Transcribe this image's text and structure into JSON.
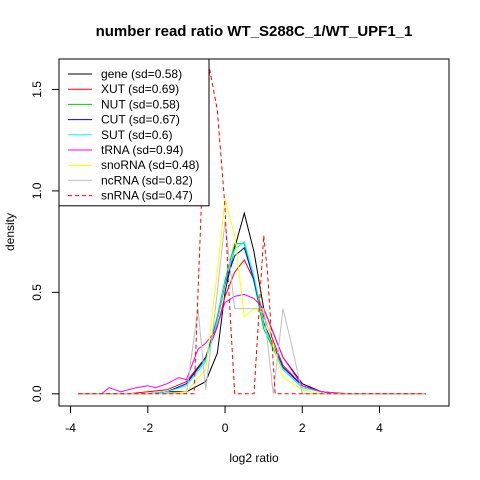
{
  "chart_data": {
    "type": "line",
    "title": "number read ratio WT_S288C_1/WT_UPF1_1",
    "xlabel": "log2 ratio",
    "ylabel": "density",
    "xlim": [
      -4.3,
      5.8
    ],
    "ylim": [
      -0.06,
      1.65
    ],
    "xticks": [
      -4,
      -2,
      0,
      2,
      4
    ],
    "yticks": [
      0.0,
      0.5,
      1.0,
      1.5
    ],
    "xtick_labels": [
      "-4",
      "-2",
      "0",
      "2",
      "4"
    ],
    "ytick_labels": [
      "0.0",
      "0.5",
      "1.0",
      "1.5"
    ],
    "legend_position": "top-left",
    "series": [
      {
        "name": "gene (sd=0.58)",
        "color": "#000000",
        "dashed": false,
        "points": [
          [
            -3.8,
            0
          ],
          [
            -3,
            0
          ],
          [
            -2,
            0
          ],
          [
            -1.5,
            0.01
          ],
          [
            -1,
            0.01
          ],
          [
            -0.5,
            0.06
          ],
          [
            -0.2,
            0.2
          ],
          [
            0,
            0.5
          ],
          [
            0.25,
            0.72
          ],
          [
            0.5,
            0.89
          ],
          [
            0.75,
            0.7
          ],
          [
            1,
            0.42
          ],
          [
            1.5,
            0.18
          ],
          [
            2,
            0.05
          ],
          [
            2.5,
            0.01
          ],
          [
            3,
            0
          ],
          [
            5.2,
            0
          ]
        ]
      },
      {
        "name": "XUT (sd=0.69)",
        "color": "#ff0000",
        "dashed": false,
        "points": [
          [
            -3.8,
            0
          ],
          [
            -2.5,
            0
          ],
          [
            -2,
            0.01
          ],
          [
            -1.5,
            0.02
          ],
          [
            -1,
            0.06
          ],
          [
            -0.5,
            0.18
          ],
          [
            -0.2,
            0.33
          ],
          [
            0,
            0.48
          ],
          [
            0.25,
            0.6
          ],
          [
            0.5,
            0.66
          ],
          [
            0.75,
            0.56
          ],
          [
            1,
            0.38
          ],
          [
            1.5,
            0.14
          ],
          [
            2,
            0.04
          ],
          [
            2.5,
            0.01
          ],
          [
            3.2,
            0
          ],
          [
            5.2,
            0
          ]
        ]
      },
      {
        "name": "NUT (sd=0.58)",
        "color": "#00cc00",
        "dashed": false,
        "points": [
          [
            -3.8,
            0
          ],
          [
            -2,
            0
          ],
          [
            -1.5,
            0.01
          ],
          [
            -1,
            0.05
          ],
          [
            -0.5,
            0.17
          ],
          [
            -0.2,
            0.38
          ],
          [
            0,
            0.56
          ],
          [
            0.25,
            0.74
          ],
          [
            0.5,
            0.74
          ],
          [
            0.75,
            0.55
          ],
          [
            1,
            0.32
          ],
          [
            1.5,
            0.12
          ],
          [
            2,
            0.03
          ],
          [
            2.5,
            0.01
          ],
          [
            3,
            0
          ],
          [
            5.2,
            0
          ]
        ]
      },
      {
        "name": "CUT (sd=0.67)",
        "color": "#0000ff",
        "dashed": false,
        "points": [
          [
            -3.8,
            0
          ],
          [
            -2,
            0
          ],
          [
            -1.5,
            0.01
          ],
          [
            -1,
            0.05
          ],
          [
            -0.5,
            0.18
          ],
          [
            -0.2,
            0.36
          ],
          [
            0,
            0.54
          ],
          [
            0.25,
            0.68
          ],
          [
            0.5,
            0.72
          ],
          [
            0.75,
            0.56
          ],
          [
            1,
            0.35
          ],
          [
            1.5,
            0.13
          ],
          [
            2,
            0.04
          ],
          [
            2.5,
            0.01
          ],
          [
            3,
            0
          ],
          [
            5.2,
            0
          ]
        ]
      },
      {
        "name": "SUT (sd=0.6)",
        "color": "#00ffff",
        "dashed": false,
        "points": [
          [
            -3.8,
            0
          ],
          [
            -2,
            0
          ],
          [
            -1.5,
            0.01
          ],
          [
            -1,
            0.04
          ],
          [
            -0.5,
            0.16
          ],
          [
            -0.2,
            0.36
          ],
          [
            0,
            0.55
          ],
          [
            0.25,
            0.71
          ],
          [
            0.5,
            0.75
          ],
          [
            0.75,
            0.58
          ],
          [
            1,
            0.34
          ],
          [
            1.5,
            0.12
          ],
          [
            2,
            0.03
          ],
          [
            2.5,
            0.01
          ],
          [
            3,
            0
          ],
          [
            5.2,
            0
          ]
        ]
      },
      {
        "name": "tRNA (sd=0.94)",
        "color": "#ff00ff",
        "dashed": false,
        "points": [
          [
            -3.8,
            0
          ],
          [
            -3.2,
            0
          ],
          [
            -3,
            0.03
          ],
          [
            -2.7,
            0.01
          ],
          [
            -2.3,
            0.03
          ],
          [
            -2,
            0.04
          ],
          [
            -1.8,
            0.03
          ],
          [
            -1.5,
            0.05
          ],
          [
            -1.2,
            0.08
          ],
          [
            -1,
            0.07
          ],
          [
            -0.7,
            0.22
          ],
          [
            -0.5,
            0.25
          ],
          [
            -0.25,
            0.31
          ],
          [
            0,
            0.45
          ],
          [
            0.25,
            0.48
          ],
          [
            0.5,
            0.49
          ],
          [
            0.75,
            0.47
          ],
          [
            1,
            0.42
          ],
          [
            1.5,
            0.18
          ],
          [
            2,
            0.04
          ],
          [
            2.5,
            0.01
          ],
          [
            3,
            0
          ],
          [
            5.2,
            0
          ]
        ]
      },
      {
        "name": "snoRNA (sd=0.48)",
        "color": "#ffff00",
        "dashed": false,
        "points": [
          [
            -3.8,
            0
          ],
          [
            -2,
            0
          ],
          [
            -1.5,
            0
          ],
          [
            -1,
            0.01
          ],
          [
            -0.5,
            0.12
          ],
          [
            -0.2,
            0.6
          ],
          [
            0,
            0.96
          ],
          [
            0.25,
            0.78
          ],
          [
            0.5,
            0.38
          ],
          [
            0.75,
            0.42
          ],
          [
            1,
            0.4
          ],
          [
            1.5,
            0.08
          ],
          [
            2,
            0.02
          ],
          [
            2.5,
            0
          ],
          [
            5.2,
            0
          ]
        ]
      },
      {
        "name": "ncRNA (sd=0.82)",
        "color": "#bebebe",
        "dashed": false,
        "points": [
          [
            -3.8,
            0
          ],
          [
            -1.5,
            0
          ],
          [
            -1,
            0
          ],
          [
            -0.7,
            0.42
          ],
          [
            -0.5,
            0.02
          ],
          [
            -0.25,
            0.42
          ],
          [
            0,
            0.85
          ],
          [
            0.25,
            0.42
          ],
          [
            0.5,
            0.42
          ],
          [
            0.75,
            0.42
          ],
          [
            1,
            0.42
          ],
          [
            1.25,
            0
          ],
          [
            1.5,
            0.42
          ],
          [
            1.75,
            0.22
          ],
          [
            2,
            0
          ],
          [
            5.2,
            0
          ]
        ]
      },
      {
        "name": "snRNA (sd=0.47)",
        "color": "#ff0000",
        "dashed": true,
        "points": [
          [
            -3.8,
            0
          ],
          [
            -1.2,
            0
          ],
          [
            -0.8,
            0
          ],
          [
            -0.6,
            1.0
          ],
          [
            -0.4,
            1.6
          ],
          [
            -0.2,
            1.4
          ],
          [
            0,
            0.92
          ],
          [
            0.1,
            0.5
          ],
          [
            0.25,
            0
          ],
          [
            0.75,
            0
          ],
          [
            1,
            0.78
          ],
          [
            1.1,
            0.6
          ],
          [
            1.3,
            0
          ],
          [
            5.2,
            0
          ]
        ]
      }
    ]
  }
}
